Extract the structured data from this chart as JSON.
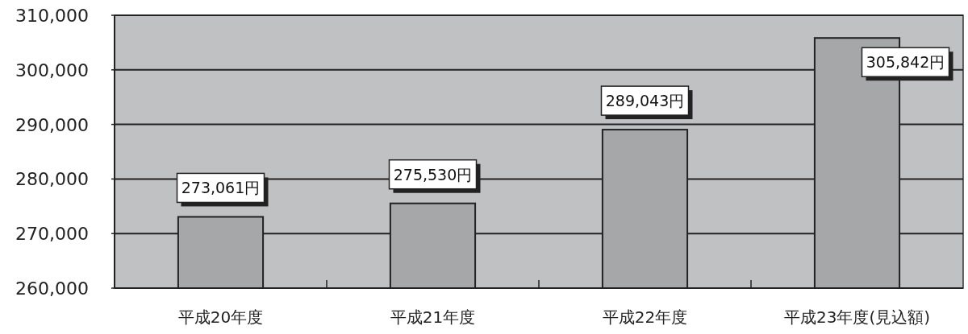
{
  "chart_data": {
    "type": "bar",
    "categories": [
      "平成20年度",
      "平成21年度",
      "平成22年度",
      "平成23年度(見込額)"
    ],
    "values": [
      273061,
      275530,
      289043,
      305842
    ],
    "value_labels": [
      "273,061円",
      "275,530円",
      "289,043円",
      "305,842円"
    ],
    "color": "#a6a7a9",
    "ylim": [
      260000,
      310000
    ],
    "yticks": [
      {
        "value": 260000,
        "label": "260,000"
      },
      {
        "value": 270000,
        "label": "270,000"
      },
      {
        "value": 280000,
        "label": "280,000"
      },
      {
        "value": 290000,
        "label": "290,000"
      },
      {
        "value": 300000,
        "label": "300,000"
      },
      {
        "value": 310000,
        "label": "310,000"
      }
    ],
    "grid": "y"
  }
}
